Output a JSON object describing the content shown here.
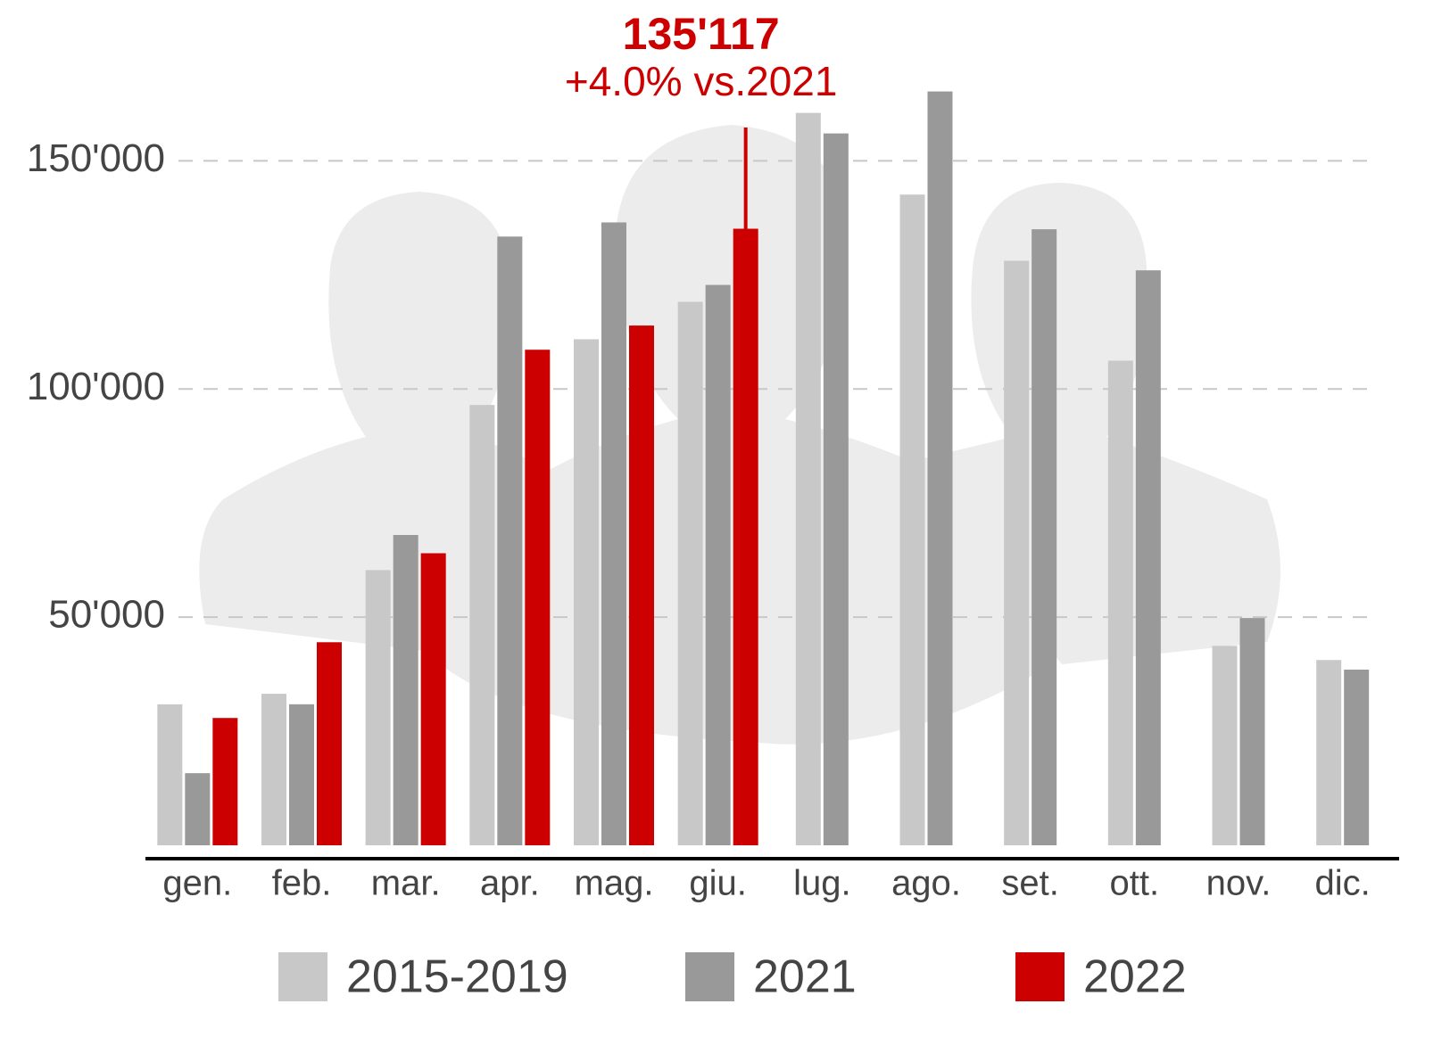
{
  "chart_data": {
    "type": "bar",
    "categories": [
      "gen.",
      "feb.",
      "mar.",
      "apr.",
      "mag.",
      "giu.",
      "lug.",
      "ago.",
      "set.",
      "ott.",
      "nov.",
      "dic."
    ],
    "series": [
      {
        "name": "2015-2019",
        "color": "#c8c8c8",
        "values": [
          30900,
          33200,
          60300,
          96500,
          110900,
          119100,
          160500,
          142600,
          128100,
          106200,
          43700,
          40600
        ]
      },
      {
        "name": "2021",
        "color": "#999999",
        "values": [
          15800,
          30900,
          68000,
          133400,
          136500,
          122800,
          156000,
          165200,
          135000,
          126000,
          49800,
          38500
        ]
      },
      {
        "name": "2022",
        "color": "#cc0000",
        "values": [
          27900,
          44500,
          64000,
          108600,
          113900,
          135117,
          null,
          null,
          null,
          null,
          null,
          null
        ],
        "value_labels": [
          null,
          null,
          null,
          null,
          null,
          "135'117",
          null,
          null,
          null,
          null,
          null,
          null
        ]
      }
    ],
    "annotation": "+4.0% vs.2021",
    "ylim": [
      0,
      170000
    ],
    "yticks": [
      {
        "value": 50000,
        "label": "50'000"
      },
      {
        "value": 100000,
        "label": "100'000"
      },
      {
        "value": 150000,
        "label": "150'000"
      }
    ],
    "grid": true,
    "legend": "bottom"
  }
}
